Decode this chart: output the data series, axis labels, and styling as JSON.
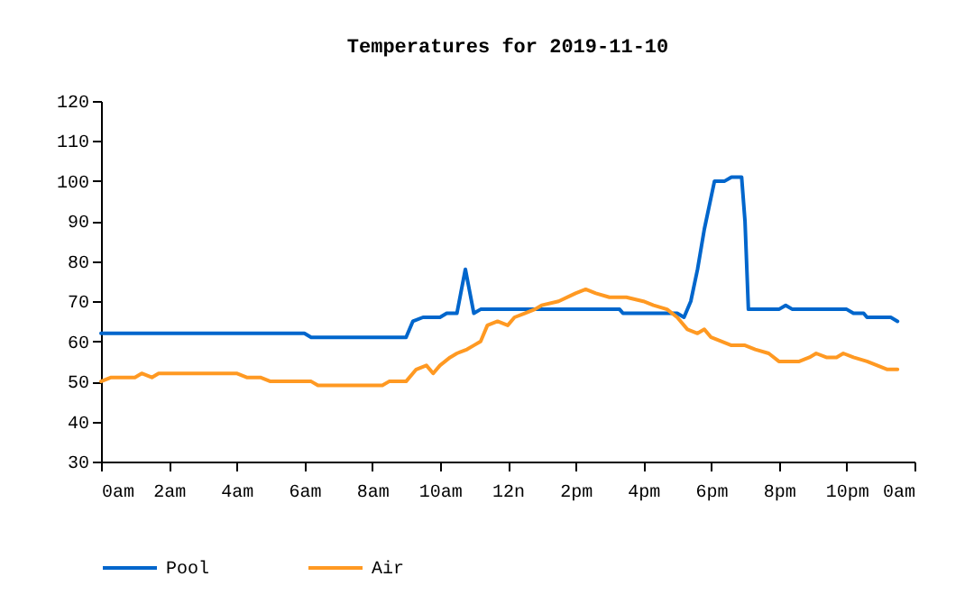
{
  "chart_data": {
    "type": "line",
    "title": "Temperatures for 2019-11-10",
    "xlim": [
      "2019-11-10T00:00",
      "2019-11-11T00:00"
    ],
    "xticks": [
      {
        "value": "2019-11-10T00:00",
        "label": "0am"
      },
      {
        "value": "2019-11-10T02:00",
        "label": "2am"
      },
      {
        "value": "2019-11-10T04:00",
        "label": "4am"
      },
      {
        "value": "2019-11-10T06:00",
        "label": "6am"
      },
      {
        "value": "2019-11-10T08:00",
        "label": "8am"
      },
      {
        "value": "2019-11-10T10:00",
        "label": "10am"
      },
      {
        "value": "2019-11-10T12:00",
        "label": "12n"
      },
      {
        "value": "2019-11-10T14:00",
        "label": "2pm"
      },
      {
        "value": "2019-11-10T16:00",
        "label": "4pm"
      },
      {
        "value": "2019-11-10T18:00",
        "label": "6pm"
      },
      {
        "value": "2019-11-10T20:00",
        "label": "8pm"
      },
      {
        "value": "2019-11-10T22:00",
        "label": "10pm"
      },
      {
        "value": "2019-11-11T00:00",
        "label": "0am"
      }
    ],
    "ylim": [
      30,
      120
    ],
    "yticks": [
      30,
      40,
      50,
      60,
      70,
      80,
      90,
      100,
      110,
      120
    ],
    "grid": false,
    "legend": "bottom",
    "marker": "none",
    "line_style": "solid",
    "series": [
      {
        "name": "Pool",
        "color": "#0066cc",
        "x": [
          "2019-11-10T00:00",
          "2019-11-10T06:00",
          "2019-11-10T06:12",
          "2019-11-10T09:00",
          "2019-11-10T09:12",
          "2019-11-10T09:30",
          "2019-11-10T10:00",
          "2019-11-10T10:12",
          "2019-11-10T10:30",
          "2019-11-10T10:45",
          "2019-11-10T11:00",
          "2019-11-10T11:12",
          "2019-11-10T15:18",
          "2019-11-10T15:24",
          "2019-11-10T17:00",
          "2019-11-10T17:12",
          "2019-11-10T17:24",
          "2019-11-10T17:36",
          "2019-11-10T17:48",
          "2019-11-10T18:00",
          "2019-11-10T18:06",
          "2019-11-10T18:24",
          "2019-11-10T18:36",
          "2019-11-10T18:54",
          "2019-11-10T19:00",
          "2019-11-10T19:06",
          "2019-11-10T20:00",
          "2019-11-10T20:12",
          "2019-11-10T20:24",
          "2019-11-10T22:00",
          "2019-11-10T22:12",
          "2019-11-10T22:30",
          "2019-11-10T22:36",
          "2019-11-10T23:18",
          "2019-11-10T23:30"
        ],
        "values": [
          62,
          62,
          61,
          61,
          65,
          66,
          66,
          67,
          67,
          78,
          67,
          68,
          68,
          67,
          67,
          66,
          70,
          78,
          88,
          96,
          100,
          100,
          101,
          101,
          90,
          68,
          68,
          69,
          68,
          68,
          67,
          67,
          66,
          66,
          65
        ]
      },
      {
        "name": "Air",
        "color": "#ff9922",
        "x": [
          "2019-11-10T00:00",
          "2019-11-10T00:18",
          "2019-11-10T01:00",
          "2019-11-10T01:12",
          "2019-11-10T01:30",
          "2019-11-10T01:42",
          "2019-11-10T04:00",
          "2019-11-10T04:18",
          "2019-11-10T04:42",
          "2019-11-10T05:00",
          "2019-11-10T06:12",
          "2019-11-10T06:24",
          "2019-11-10T08:18",
          "2019-11-10T08:30",
          "2019-11-10T09:00",
          "2019-11-10T09:18",
          "2019-11-10T09:36",
          "2019-11-10T09:48",
          "2019-11-10T10:00",
          "2019-11-10T10:18",
          "2019-11-10T10:30",
          "2019-11-10T10:48",
          "2019-11-10T11:00",
          "2019-11-10T11:12",
          "2019-11-10T11:24",
          "2019-11-10T11:42",
          "2019-11-10T12:00",
          "2019-11-10T12:12",
          "2019-11-10T12:30",
          "2019-11-10T12:48",
          "2019-11-10T13:00",
          "2019-11-10T13:30",
          "2019-11-10T14:00",
          "2019-11-10T14:18",
          "2019-11-10T14:36",
          "2019-11-10T15:00",
          "2019-11-10T15:30",
          "2019-11-10T16:00",
          "2019-11-10T16:18",
          "2019-11-10T16:42",
          "2019-11-10T17:00",
          "2019-11-10T17:18",
          "2019-11-10T17:36",
          "2019-11-10T17:48",
          "2019-11-10T18:00",
          "2019-11-10T18:18",
          "2019-11-10T18:36",
          "2019-11-10T19:00",
          "2019-11-10T19:18",
          "2019-11-10T19:42",
          "2019-11-10T20:00",
          "2019-11-10T20:36",
          "2019-11-10T20:54",
          "2019-11-10T21:06",
          "2019-11-10T21:24",
          "2019-11-10T21:42",
          "2019-11-10T21:54",
          "2019-11-10T22:12",
          "2019-11-10T22:36",
          "2019-11-10T22:54",
          "2019-11-10T23:12",
          "2019-11-10T23:30"
        ],
        "values": [
          50,
          51,
          51,
          52,
          51,
          52,
          52,
          51,
          51,
          50,
          50,
          49,
          49,
          50,
          50,
          53,
          54,
          52,
          54,
          56,
          57,
          58,
          59,
          60,
          64,
          65,
          64,
          66,
          67,
          68,
          69,
          70,
          72,
          73,
          72,
          71,
          71,
          70,
          69,
          68,
          66,
          63,
          62,
          63,
          61,
          60,
          59,
          59,
          58,
          57,
          55,
          55,
          56,
          57,
          56,
          56,
          57,
          56,
          55,
          54,
          53,
          53
        ]
      }
    ]
  }
}
